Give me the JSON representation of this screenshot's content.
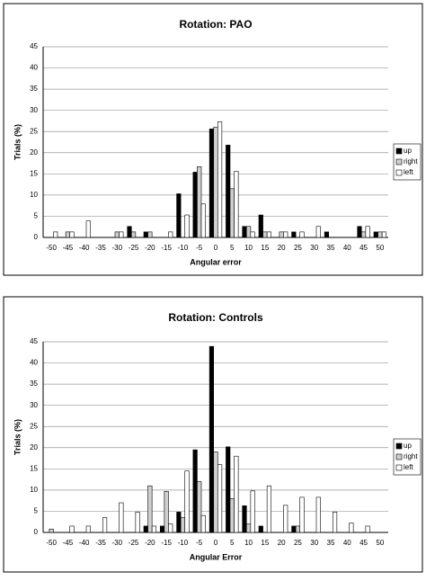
{
  "charts": [
    {
      "type": "bar",
      "title": "Rotation: PAO",
      "x_label": "Angular error",
      "y_label": "Trials (%)",
      "categories": [
        "-50",
        "-45",
        "-40",
        "-35",
        "-30",
        "-25",
        "-20",
        "-15",
        "-10",
        "-5",
        "0",
        "5",
        "10",
        "15",
        "20",
        "25",
        "30",
        "35",
        "40",
        "45",
        "50"
      ],
      "series": [
        {
          "name": "up",
          "color": "#000000",
          "values": [
            0,
            0,
            0,
            0,
            0,
            2.6,
            1.3,
            0,
            10.3,
            15.4,
            25.6,
            21.8,
            2.6,
            5.3,
            0,
            1.3,
            0,
            1.3,
            0,
            2.6,
            1.3
          ]
        },
        {
          "name": "right",
          "color": "#cfcfcf",
          "values": [
            0,
            1.3,
            0,
            0,
            1.3,
            1.3,
            1.3,
            0,
            0,
            16.7,
            26,
            11.5,
            2.6,
            1.3,
            1.3,
            0,
            0,
            0,
            0,
            1.3,
            1.3
          ]
        },
        {
          "name": "left",
          "color": "#ffffff",
          "values": [
            1.3,
            1.3,
            3.9,
            0,
            1.3,
            0,
            0,
            1.3,
            5.3,
            7.9,
            27.3,
            15.6,
            1.3,
            1.3,
            1.3,
            1.3,
            2.6,
            0,
            0,
            2.6,
            1.3
          ]
        }
      ],
      "ylim": [
        0,
        45
      ],
      "yticks": [
        0,
        5,
        10,
        15,
        20,
        25,
        30,
        35,
        40,
        45
      ],
      "grid": true
    },
    {
      "type": "bar",
      "title": "Rotation: Controls",
      "x_label": "Angular Error",
      "y_label": "Trials (%)",
      "categories": [
        "-50",
        "-45",
        "-40",
        "-35",
        "-30",
        "-25",
        "-20",
        "-15",
        "-10",
        "-5",
        "0",
        "5",
        "10",
        "15",
        "20",
        "25",
        "30",
        "35",
        "40",
        "45",
        "50"
      ],
      "series": [
        {
          "name": "up",
          "color": "#000000",
          "values": [
            0,
            0,
            0,
            0,
            0,
            0,
            1.5,
            1.5,
            4.8,
            19.5,
            43.9,
            20.2,
            6.3,
            1.5,
            0,
            1.5,
            0,
            0,
            0,
            0,
            0
          ]
        },
        {
          "name": "right",
          "color": "#cfcfcf",
          "values": [
            0.8,
            0,
            0,
            0,
            0,
            0,
            11,
            9.7,
            3.5,
            12,
            19,
            8,
            2,
            0,
            0,
            1.5,
            0,
            0,
            0,
            0,
            0
          ]
        },
        {
          "name": "left",
          "color": "#ffffff",
          "values": [
            0,
            1.5,
            1.5,
            3.5,
            7,
            4.8,
            1.5,
            2,
            14.5,
            4,
            16,
            18,
            9.8,
            11,
            6.4,
            8.3,
            8.3,
            4.8,
            2.2,
            1.5,
            0
          ]
        }
      ],
      "ylim": [
        0,
        45
      ],
      "yticks": [
        0,
        5,
        10,
        15,
        20,
        25,
        30,
        35,
        40,
        45
      ],
      "grid": true
    }
  ]
}
